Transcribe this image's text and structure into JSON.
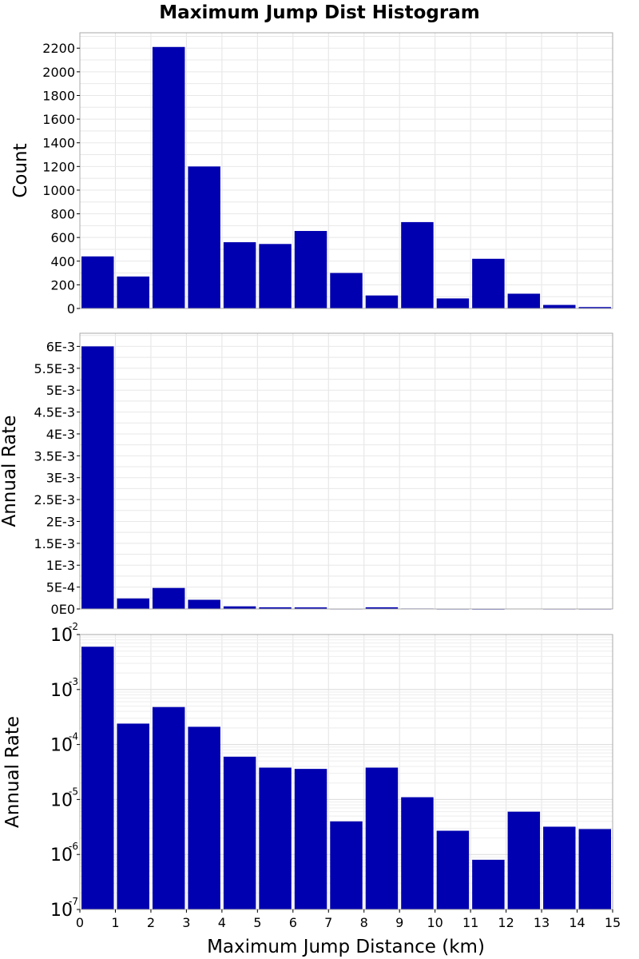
{
  "chart_data": [
    {
      "type": "bar",
      "title": "Maximum Jump Dist Histogram",
      "ylabel": "Count",
      "xlabel": "",
      "xlim": [
        0,
        15
      ],
      "ylim": [
        0,
        2330
      ],
      "yscale": "linear",
      "grid": true,
      "color": "#0000b0",
      "x": [
        0.5,
        1.5,
        2.5,
        3.5,
        4.5,
        5.5,
        6.5,
        7.5,
        8.5,
        9.5,
        10.5,
        11.5,
        12.5,
        13.5,
        14.5
      ],
      "values": [
        440,
        270,
        2210,
        1200,
        560,
        545,
        655,
        300,
        110,
        730,
        85,
        420,
        125,
        30,
        12
      ],
      "y_ticks": [
        0,
        200,
        400,
        600,
        800,
        1000,
        1200,
        1400,
        1600,
        1800,
        2000,
        2200
      ],
      "y_tick_labels": [
        "0",
        "200",
        "400",
        "600",
        "800",
        "1000",
        "1200",
        "1400",
        "1600",
        "1800",
        "2000",
        "2200"
      ]
    },
    {
      "type": "bar",
      "title": "",
      "ylabel": "Annual Rate",
      "xlabel": "",
      "xlim": [
        0,
        15
      ],
      "ylim": [
        0,
        0.0063
      ],
      "yscale": "linear",
      "grid": true,
      "color": "#0000b0",
      "x": [
        0.5,
        1.5,
        2.5,
        3.5,
        4.5,
        5.5,
        6.5,
        7.5,
        8.5,
        9.5,
        10.5,
        11.5,
        12.5,
        13.5,
        14.5
      ],
      "values": [
        0.006,
        0.00024,
        0.00048,
        0.00021,
        6e-05,
        3.8e-05,
        3.6e-05,
        4e-06,
        3.8e-05,
        1.1e-05,
        2.7e-06,
        8e-07,
        6e-06,
        3.2e-06,
        2.9e-06
      ],
      "y_ticks": [
        0,
        0.0005,
        0.001,
        0.0015,
        0.002,
        0.0025,
        0.003,
        0.0035,
        0.004,
        0.0045,
        0.005,
        0.0055,
        0.006
      ],
      "y_tick_labels": [
        "0E0",
        "5E-4",
        "1E-3",
        "1.5E-3",
        "2E-3",
        "2.5E-3",
        "3E-3",
        "3.5E-3",
        "4E-3",
        "4.5E-3",
        "5E-3",
        "5.5E-3",
        "6E-3"
      ]
    },
    {
      "type": "bar",
      "title": "",
      "ylabel": "Annual Rate",
      "xlabel": "Maximum Jump Distance (km)",
      "xlim": [
        0,
        15
      ],
      "ylim": [
        1e-07,
        0.01
      ],
      "yscale": "log",
      "grid": true,
      "color": "#0000b0",
      "x": [
        0.5,
        1.5,
        2.5,
        3.5,
        4.5,
        5.5,
        6.5,
        7.5,
        8.5,
        9.5,
        10.5,
        11.5,
        12.5,
        13.5,
        14.5
      ],
      "values": [
        0.006,
        0.00024,
        0.00048,
        0.00021,
        6e-05,
        3.8e-05,
        3.6e-05,
        4e-06,
        3.8e-05,
        1.1e-05,
        2.7e-06,
        8e-07,
        6e-06,
        3.2e-06,
        2.9e-06
      ],
      "y_ticks": [
        1e-07,
        1e-06,
        1e-05,
        0.0001,
        0.001,
        0.01
      ],
      "y_tick_base": "10",
      "y_tick_exponents": [
        "-7",
        "-6",
        "-5",
        "-4",
        "-3",
        "-2"
      ],
      "x_ticks": [
        0,
        1,
        2,
        3,
        4,
        5,
        6,
        7,
        8,
        9,
        10,
        11,
        12,
        13,
        14,
        15
      ],
      "x_tick_labels": [
        "0",
        "1",
        "2",
        "3",
        "4",
        "5",
        "6",
        "7",
        "8",
        "9",
        "10",
        "11",
        "12",
        "13",
        "14",
        "15"
      ]
    }
  ]
}
